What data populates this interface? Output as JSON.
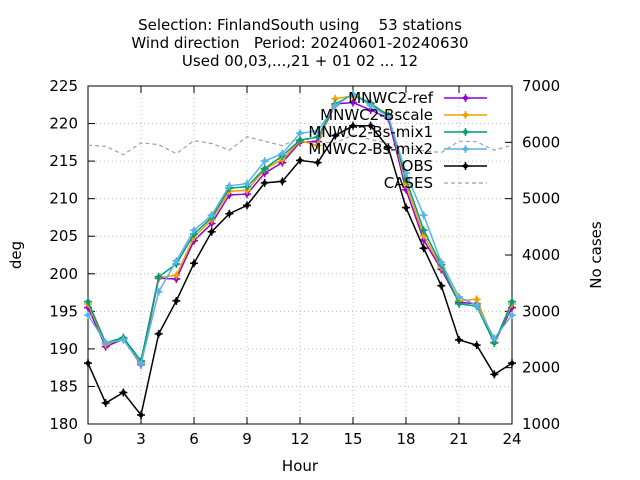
{
  "chart_data": {
    "type": "line",
    "title": [
      "Selection: FinlandSouth using    53 stations",
      "Wind direction   Period: 20240601-20240630",
      "Used 00,03,...,21 + 01 02 ... 12"
    ],
    "xlabel": "Hour",
    "ylabel": "deg",
    "y2label": "No cases",
    "xlim": [
      0,
      24
    ],
    "ylim": [
      180,
      225
    ],
    "y2lim": [
      1000,
      7000
    ],
    "xticks": [
      0,
      3,
      6,
      9,
      12,
      15,
      18,
      21,
      24
    ],
    "yticks": [
      180,
      185,
      190,
      195,
      200,
      205,
      210,
      215,
      220,
      225
    ],
    "y2ticks": [
      1000,
      2000,
      3000,
      4000,
      5000,
      6000,
      7000
    ],
    "grid": true,
    "legend_position": "top-right",
    "x": [
      0,
      1,
      2,
      3,
      4,
      5,
      6,
      7,
      8,
      9,
      10,
      11,
      12,
      13,
      14,
      15,
      16,
      17,
      18,
      19,
      20,
      21,
      22,
      23,
      24
    ],
    "series": [
      {
        "name": "MNWC2-ref",
        "color": "#9400d3",
        "marker": "plus",
        "dash": false,
        "axis": "y",
        "values": [
          195.5,
          190.3,
          191.3,
          187.9,
          199.4,
          199.3,
          204.4,
          206.7,
          210.5,
          210.6,
          213.4,
          214.8,
          217.5,
          217.6,
          222.6,
          222.8,
          221.8,
          220.7,
          211.2,
          204.5,
          200.6,
          196.2,
          196.0,
          190.8,
          195.5
        ]
      },
      {
        "name": "MNWC2-Bscale",
        "color": "#f0a000",
        "marker": "plus",
        "dash": false,
        "axis": "y",
        "values": [
          196.0,
          190.6,
          191.4,
          188.2,
          199.5,
          199.8,
          204.9,
          207.2,
          211.0,
          211.1,
          213.9,
          215.2,
          217.7,
          217.1,
          223.3,
          223.7,
          222.6,
          221.2,
          211.9,
          205.1,
          200.9,
          196.4,
          196.6,
          190.9,
          196.0
        ]
      },
      {
        "name": "MNWC2-Bs-mix1",
        "color": "#009e73",
        "marker": "plus",
        "dash": false,
        "axis": "y",
        "values": [
          196.3,
          190.8,
          191.5,
          188.4,
          199.6,
          201.3,
          205.3,
          207.5,
          211.4,
          211.6,
          214.0,
          215.7,
          217.8,
          218.2,
          222.6,
          223.9,
          222.7,
          221.0,
          212.6,
          205.8,
          201.2,
          196.0,
          195.7,
          190.8,
          196.3
        ]
      },
      {
        "name": "MNWC2-Bs-mix2",
        "color": "#56b4e9",
        "marker": "plus",
        "dash": false,
        "axis": "y",
        "values": [
          194.5,
          190.8,
          191.2,
          188.0,
          197.6,
          201.7,
          205.8,
          207.8,
          211.7,
          212.0,
          215.0,
          216.0,
          218.7,
          219.0,
          222.4,
          223.9,
          222.4,
          220.9,
          213.4,
          207.8,
          201.5,
          196.9,
          195.8,
          191.4,
          194.5
        ]
      },
      {
        "name": "OBS",
        "color": "#000000",
        "marker": "plus",
        "dash": false,
        "axis": "y",
        "values": [
          188.1,
          182.8,
          184.2,
          181.2,
          192.0,
          196.4,
          201.4,
          205.6,
          208.0,
          209.1,
          212.1,
          212.3,
          215.1,
          214.8,
          218.4,
          219.7,
          219.7,
          216.8,
          208.8,
          203.4,
          198.4,
          191.2,
          190.5,
          186.6,
          188.1
        ]
      },
      {
        "name": "CASES",
        "color": "#a0a0a0",
        "marker": "none",
        "dash": true,
        "axis": "y2",
        "values": [
          5950,
          5930,
          5780,
          5990,
          5960,
          5800,
          6030,
          5980,
          5860,
          6100,
          6020,
          5940,
          6080,
          6010,
          5990,
          6130,
          6050,
          5980,
          5900,
          5850,
          5820,
          6020,
          6010,
          5860,
          5950
        ]
      }
    ]
  }
}
